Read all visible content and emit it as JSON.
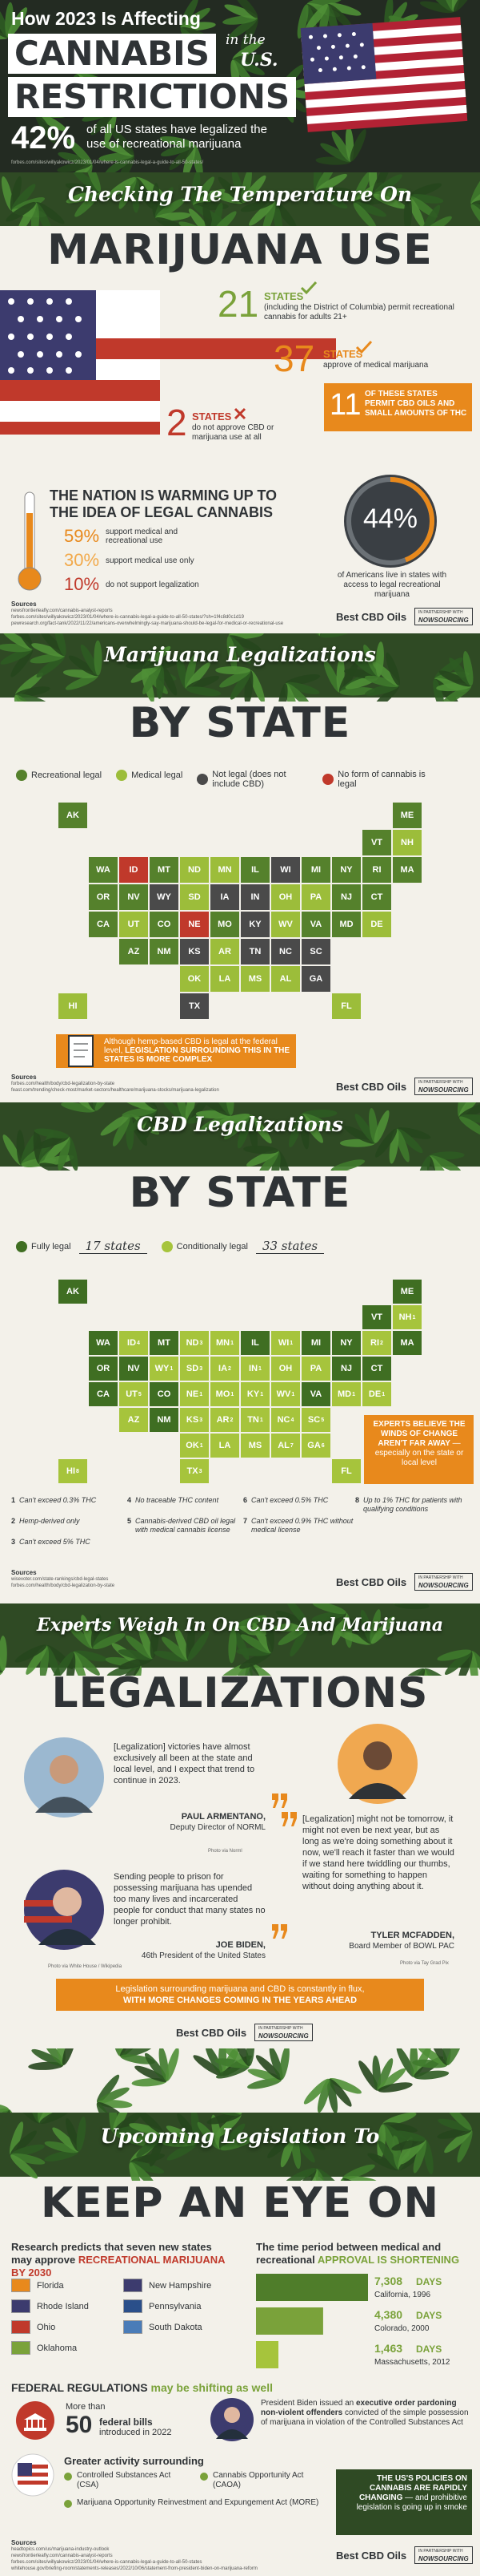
{
  "header": {
    "title_line1": "How 2023 Is Affecting",
    "title_word1": "CANNABIS",
    "title_word2": "RESTRICTIONS",
    "in_the": "in the",
    "us": "U.S.",
    "stat": "42%",
    "stat_text": "of all US states have legalized the use of recreational marijuana",
    "source": "forbes.com/sites/willyakowicz/2023/01/04/where-is-cannabis-legal-a-guide-to-all-50-states/"
  },
  "temperature": {
    "kicker": "Checking The Temperature On",
    "title": "MARIJUANA USE",
    "stats": [
      {
        "number": "21",
        "label": "STATES",
        "text": "(including the District of Columbia) permit recreational cannabis for adults 21+"
      },
      {
        "number": "37",
        "label": "STATES",
        "text": "approve of medical marijuana"
      },
      {
        "number": "11",
        "text": "OF THESE STATES PERMIT CBD OILS AND SMALL AMOUNTS OF THC"
      },
      {
        "number": "2",
        "label": "STATES",
        "text": "do not approve CBD or marijuana use at all"
      }
    ],
    "warming_title": "THE NATION IS WARMING UP TO THE IDEA OF LEGAL CANNABIS",
    "support": [
      {
        "pct": "59%",
        "text": "support medical and recreational use"
      },
      {
        "pct": "30%",
        "text": "support medical use only"
      },
      {
        "pct": "10%",
        "text": "do not support legalization"
      }
    ],
    "access": {
      "value": 44,
      "label": "44%",
      "text": "of Americans live in states with access to legal recreational marijuana"
    },
    "sources_title": "Sources",
    "sources": [
      "newsfrontierleafly.com/cannabis-analyst-reports",
      "forbes.com/sites/willyakowicz/2023/01/04/where-is-cannabis-legal-a-guide-to-all-50-states/?sh=1f4c8d0c1d19",
      "pewresearch.org/fact-tank/2022/11/22/americans-overwhelmingly-say-marijuana-should-be-legal-for-medical-or-recreational-use"
    ]
  },
  "brand": "Best CBD Oils",
  "partner_kicker": "IN PARTNERSHIP WITH",
  "partner": "NOWSOURCING",
  "state_map": {
    "kicker": "Marijuana Legalizations",
    "title": "BY STATE",
    "legend": [
      {
        "label": "Recreational legal",
        "color": "#55812c",
        "states": [
          "AK",
          "AZ",
          "CA",
          "CO",
          "CT",
          "IL",
          "ME",
          "MD",
          "MA",
          "MI",
          "MO",
          "MT",
          "NV",
          "NJ",
          "NM",
          "NY",
          "OR",
          "RI",
          "VT",
          "VA",
          "WA"
        ]
      },
      {
        "label": "Medical legal",
        "color": "#9cbd3a",
        "states": [
          "AL",
          "AR",
          "DE",
          "FL",
          "HI",
          "LA",
          "MN",
          "MS",
          "NH",
          "ND",
          "OH",
          "OK",
          "PA",
          "SD",
          "UT",
          "WV"
        ]
      },
      {
        "label": "Not legal (does not include CBD)",
        "color": "#4a4a4a",
        "states": [
          "GA",
          "IN",
          "IA",
          "KS",
          "KY",
          "NC",
          "SC",
          "TN",
          "TX",
          "WI",
          "WY"
        ]
      },
      {
        "label": "No form of cannabis is legal",
        "color": "#c0392b",
        "states": [
          "ID",
          "NE"
        ]
      }
    ],
    "callout": "Although hemp-based CBD is legal at the federal level,",
    "callout_bold": "LEGISLATION SURROUNDING THIS IN THE STATES IS MORE COMPLEX",
    "sources_title": "Sources",
    "sources": [
      "forbes.com/health/body/cbd-legalization-by-state",
      "feast.com/trending/check-most/market-sectors/healthcare/marijuana-stocks/marijuana-legalization"
    ]
  },
  "cbd_map": {
    "kicker": "CBD Legalizations",
    "title": "BY STATE",
    "legend": [
      {
        "label": "Fully legal",
        "count": "17 states",
        "color": "#3f6e22",
        "states": [
          {
            "code": "AK"
          },
          {
            "code": "CA"
          },
          {
            "code": "CO"
          },
          {
            "code": "CT"
          },
          {
            "code": "IL"
          },
          {
            "code": "ME"
          },
          {
            "code": "MA"
          },
          {
            "code": "MI"
          },
          {
            "code": "MT"
          },
          {
            "code": "NV"
          },
          {
            "code": "NJ"
          },
          {
            "code": "NM"
          },
          {
            "code": "NY"
          },
          {
            "code": "OR"
          },
          {
            "code": "VT"
          },
          {
            "code": "VA"
          },
          {
            "code": "WA"
          }
        ]
      },
      {
        "label": "Conditionally legal",
        "count": "33 states",
        "color": "#a6c43c",
        "states": [
          {
            "code": "AL",
            "note": "7"
          },
          {
            "code": "AR",
            "note": "2"
          },
          {
            "code": "AZ"
          },
          {
            "code": "DE",
            "note": "1"
          },
          {
            "code": "FL"
          },
          {
            "code": "GA",
            "note": "6"
          },
          {
            "code": "HI",
            "note": "8"
          },
          {
            "code": "ID",
            "note": "4"
          },
          {
            "code": "IN",
            "note": "1"
          },
          {
            "code": "IA",
            "note": "2"
          },
          {
            "code": "KS",
            "note": "3"
          },
          {
            "code": "KY",
            "note": "1"
          },
          {
            "code": "LA"
          },
          {
            "code": "MD",
            "note": "1"
          },
          {
            "code": "MN",
            "note": "1"
          },
          {
            "code": "MS"
          },
          {
            "code": "MO",
            "note": "1"
          },
          {
            "code": "NE",
            "note": "1"
          },
          {
            "code": "NH",
            "note": "1"
          },
          {
            "code": "NC",
            "note": "4"
          },
          {
            "code": "ND",
            "note": "3"
          },
          {
            "code": "OH"
          },
          {
            "code": "OK",
            "note": "1"
          },
          {
            "code": "PA"
          },
          {
            "code": "RI",
            "note": "2"
          },
          {
            "code": "SC",
            "note": "5"
          },
          {
            "code": "SD",
            "note": "3"
          },
          {
            "code": "TN",
            "note": "1"
          },
          {
            "code": "TX",
            "note": "3"
          },
          {
            "code": "UT",
            "note": "5"
          },
          {
            "code": "WV",
            "note": "1"
          },
          {
            "code": "WI",
            "note": "1"
          },
          {
            "code": "WY",
            "note": "1"
          }
        ]
      }
    ],
    "callout_bold": "EXPERTS BELIEVE THE WINDS OF CHANGE AREN'T FAR AWAY",
    "callout": "— especially on the state or local level",
    "footnotes": [
      {
        "n": "1",
        "text": "Can't exceed 0.3% THC"
      },
      {
        "n": "2",
        "text": "Hemp-derived only"
      },
      {
        "n": "3",
        "text": "Can't exceed 5% THC"
      },
      {
        "n": "4",
        "text": "No traceable THC content"
      },
      {
        "n": "5",
        "text": "Cannabis-derived CBD oil legal with medical cannabis license"
      },
      {
        "n": "6",
        "text": "Can't exceed 0.5% THC"
      },
      {
        "n": "7",
        "text": "Can't exceed 0.9% THC without medical license"
      },
      {
        "n": "8",
        "text": "Up to 1% THC for patients with qualifying conditions"
      }
    ],
    "sources_title": "Sources",
    "sources": [
      "wisevoter.com/state-rankings/cbd-legal-states",
      "forbes.com/health/body/cbd-legalization-by-state"
    ]
  },
  "experts": {
    "kicker": "Experts Weigh In On CBD And Marijuana",
    "title": "LEGALIZATIONS",
    "quotes": [
      {
        "quote": "[Legalization] victories have almost exclusively all been at the state and local level, and I expect that trend to continue in 2023.",
        "name": "PAUL ARMENTANO,",
        "role": "Deputy Director of NORML",
        "credit": "Photo via Norml"
      },
      {
        "quote": "[Legalization] might not be tomorrow, it might not even be next year, but as long as we're doing something about it now, we'll reach it faster than we would if we stand here twiddling our thumbs, waiting for something to happen without doing anything about it.",
        "name": "TYLER MCFADDEN,",
        "role": "Board Member of BOWL PAC",
        "credit": "Photo via Tay Grad Pix"
      },
      {
        "quote": "Sending people to prison for possessing marijuana has upended too many lives and incarcerated people for conduct that many states no longer prohibit.",
        "name": "JOE BIDEN,",
        "role": "46th President of the United States",
        "credit": "Photo via White House / Wikipedia"
      }
    ],
    "banner": "Legislation surrounding marijuana and CBD is constantly in flux,",
    "banner_bold": "WITH MORE CHANGES COMING IN THE YEARS AHEAD"
  },
  "upcoming": {
    "kicker": "Upcoming Legislation To",
    "title": "KEEP AN EYE ON",
    "research_title": "Research predicts that seven new states may approve",
    "research_bold": "RECREATIONAL MARIJUANA BY 2030",
    "states": [
      "Florida",
      "Rhode Island",
      "Ohio",
      "Oklahoma",
      "New Hampshire",
      "Pennsylvania",
      "South Dakota"
    ],
    "period_title": "The time period between medical and recreational",
    "period_bold": "APPROVAL IS SHORTENING",
    "periods": [
      {
        "value": 7308,
        "label": "7,308",
        "unit": "DAYS",
        "place": "California, 1996"
      },
      {
        "value": 4380,
        "label": "4,380",
        "unit": "DAYS",
        "place": "Colorado, 2000"
      },
      {
        "value": 1463,
        "label": "1,463",
        "unit": "DAYS",
        "place": "Massachusetts, 2012"
      }
    ],
    "federal_bold": "FEDERAL REGULATIONS",
    "federal_rest": "may be shifting as well",
    "bills_pre": "More than",
    "bills_number": "50",
    "bills_bold": "federal bills",
    "bills_post": "introduced in 2022",
    "pardon_pre": "President Biden issued an",
    "pardon_bold": "executive order pardoning non-violent offenders",
    "pardon_post": "convicted of the simple possession of marijuana in violation of the Controlled Substances Act",
    "activity_title": "Greater activity surrounding",
    "acts": [
      "Controlled Substances Act (CSA)",
      "Cannabis Opportunity Act (CAOA)",
      "Marijuana Opportunity Reinvestment and Expungement Act (MORE)"
    ],
    "closing_bold": "THE US'S POLICIES ON CANNABIS ARE RAPIDLY CHANGING",
    "closing": "— and prohibitive legislation is going up in smoke",
    "sources_title": "Sources",
    "sources": [
      "headtopics.com/us/marijuana-industry-outlook",
      "newsfrontierleafly.com/cannabis-analyst-reports",
      "forbes.com/sites/willyakowicz/2023/01/04/where-is-cannabis-legal-a-guide-to-all-50-states",
      "whitehouse.gov/briefing-room/statements-releases/2022/10/06/statement-from-president-biden-on-marijuana-reform"
    ]
  }
}
